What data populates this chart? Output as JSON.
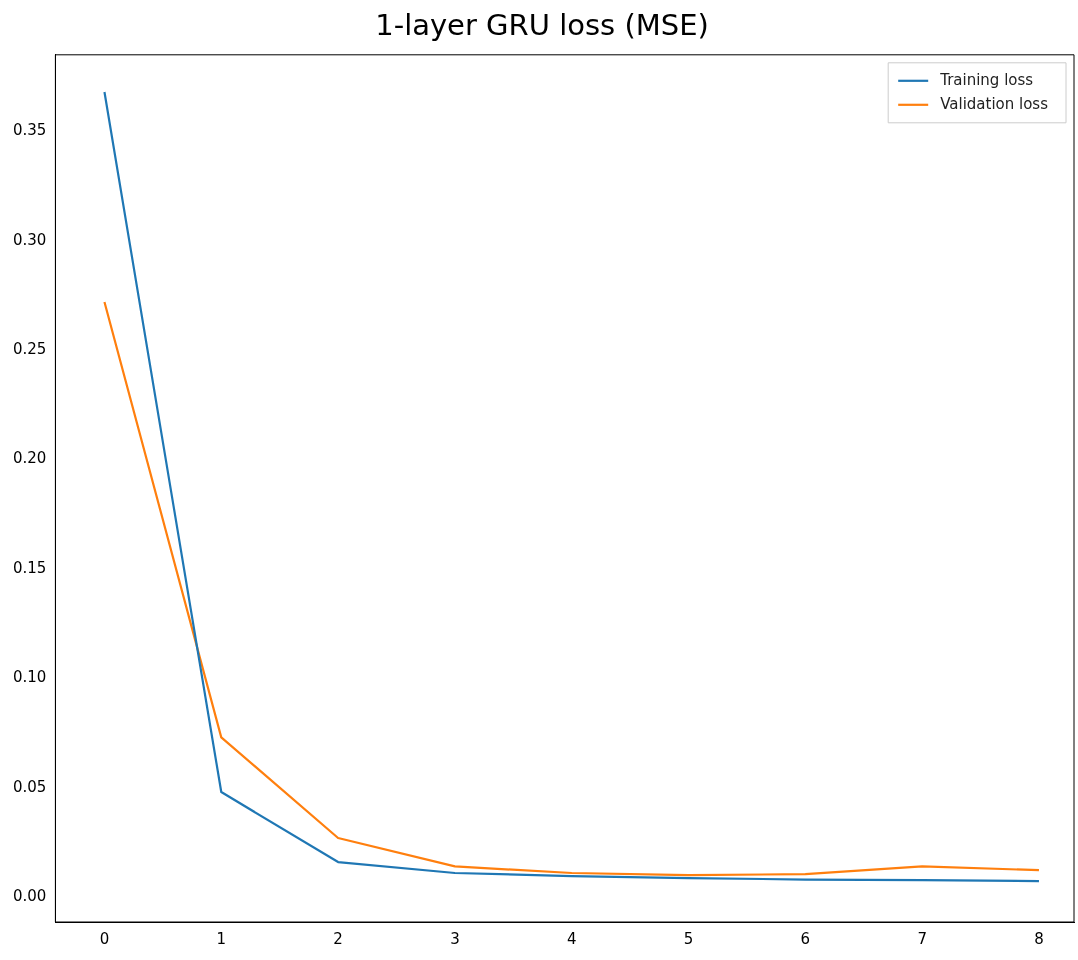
{
  "chart_data": {
    "type": "line",
    "title": "1-layer GRU loss (MSE)",
    "x": [
      0,
      1,
      2,
      3,
      4,
      5,
      6,
      7,
      8
    ],
    "series": [
      {
        "name": "Training loss",
        "color": "#1f77b4",
        "values": [
          0.368,
          0.048,
          0.016,
          0.011,
          0.0096,
          0.0087,
          0.008,
          0.0077,
          0.0073
        ]
      },
      {
        "name": "Validation loss",
        "color": "#ff7f0e",
        "values": [
          0.272,
          0.073,
          0.027,
          0.014,
          0.011,
          0.01,
          0.0105,
          0.014,
          0.0123
        ]
      }
    ],
    "xlim": [
      -0.42,
      8.3
    ],
    "xticks": [
      0,
      1,
      2,
      3,
      4,
      5,
      6,
      7,
      8
    ],
    "ylim": [
      -0.0114,
      0.385
    ],
    "yticks": [
      {
        "value": 0,
        "label": "0.00"
      },
      {
        "value": 0.05,
        "label": "0.05"
      },
      {
        "value": 0.1,
        "label": "0.10"
      },
      {
        "value": 0.15,
        "label": "0.15"
      },
      {
        "value": 0.2,
        "label": "0.20"
      },
      {
        "value": 0.25,
        "label": "0.25"
      },
      {
        "value": 0.3,
        "label": "0.30"
      },
      {
        "value": 0.35,
        "label": "0.35"
      }
    ],
    "grid": false,
    "legend": "top right",
    "marker": "none",
    "line_style": "solid"
  }
}
